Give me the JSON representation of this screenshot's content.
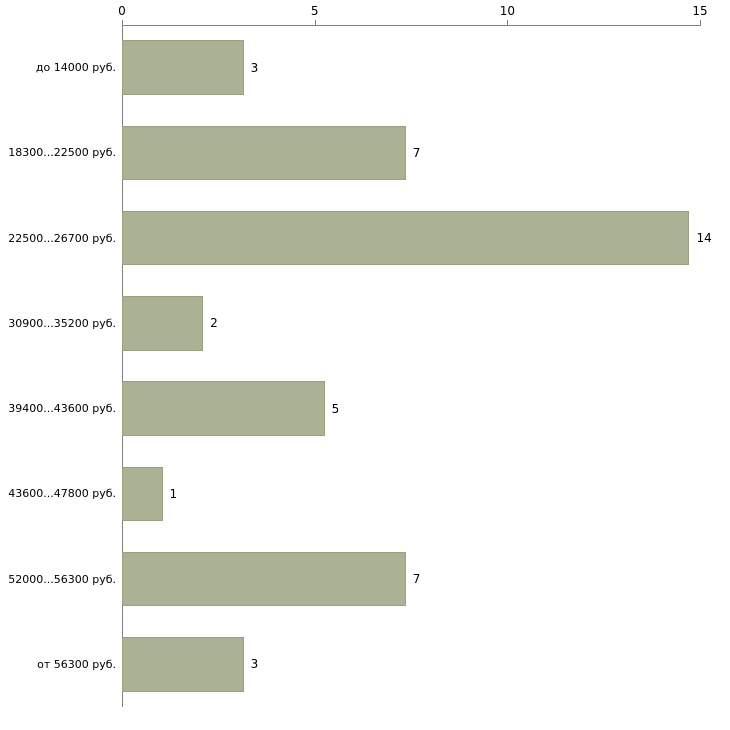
{
  "chart_data": {
    "type": "bar",
    "orientation": "horizontal",
    "title": "",
    "xlabel": "",
    "ylabel": "",
    "categories": [
      "до 14000 руб.",
      "18300...22500 руб.",
      "22500...26700 руб.",
      "30900...35200 руб.",
      "39400...43600 руб.",
      "43600...47800 руб.",
      "52000...56300 руб.",
      "от 56300 руб."
    ],
    "values": [
      3,
      7,
      14,
      2,
      5,
      1,
      7,
      3
    ],
    "xlim": [
      0,
      15
    ],
    "xticks": [
      0,
      5,
      10,
      15
    ],
    "grid": false,
    "legend": false,
    "axis_position": "top",
    "bar_color": "#abb293",
    "bar_border_color": "#9aa182",
    "axis_color": "#808080",
    "text_color": "#000000"
  }
}
